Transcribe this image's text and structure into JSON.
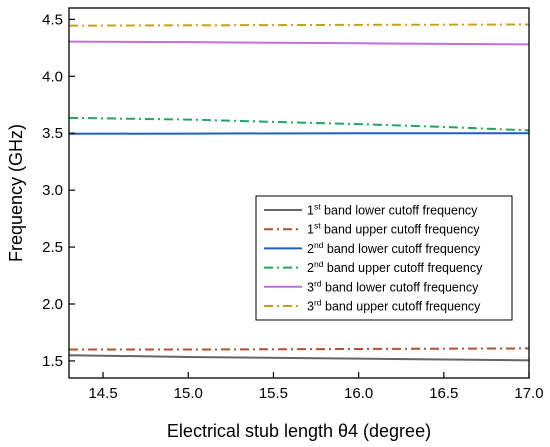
{
  "chart_data": {
    "type": "line",
    "xlabel": "Electrical stub length θ4 (degree)",
    "ylabel": "Frequency (GHz)",
    "xlim": [
      14.3,
      17.0
    ],
    "ylim": [
      1.35,
      4.6
    ],
    "xticks": [
      14.5,
      15.0,
      15.5,
      16.0,
      16.5,
      17.0
    ],
    "xtick_labels": [
      "14.5",
      "15.0",
      "15.5",
      "16.0",
      "16.5",
      "17.0"
    ],
    "yticks": [
      1.5,
      2.0,
      2.5,
      3.0,
      3.5,
      4.0,
      4.5
    ],
    "ytick_labels": [
      "1.5",
      "2.0",
      "2.5",
      "3.0",
      "3.5",
      "4.0",
      "4.5"
    ],
    "grid": false,
    "legend_position": "center-right",
    "series": [
      {
        "name": "1st band lower cutoff frequency",
        "label_parts": [
          "1",
          "st",
          " band lower cutoff frequency"
        ],
        "color": "#666666",
        "dash": "solid",
        "x": [
          14.3,
          15.0,
          16.0,
          17.0
        ],
        "y": [
          1.55,
          1.535,
          1.52,
          1.505
        ]
      },
      {
        "name": "1st band upper cutoff frequency",
        "label_parts": [
          "1",
          "st",
          " band upper cutoff frequency"
        ],
        "color": "#b5502f",
        "dash": "dashdot",
        "x": [
          14.3,
          15.0,
          16.0,
          17.0
        ],
        "y": [
          1.6,
          1.6,
          1.605,
          1.61
        ]
      },
      {
        "name": "2nd band lower cutoff frequency",
        "label_parts": [
          "2",
          "nd",
          " band lower cutoff frequency"
        ],
        "color": "#1f5fbf",
        "dash": "solid",
        "x": [
          14.3,
          15.0,
          16.0,
          17.0
        ],
        "y": [
          3.495,
          3.497,
          3.5,
          3.5
        ]
      },
      {
        "name": "2nd band upper cutoff frequency",
        "label_parts": [
          "2",
          "nd",
          " band upper cutoff frequency"
        ],
        "color": "#23a36a",
        "dash": "dashdot",
        "x": [
          14.3,
          15.0,
          15.5,
          16.0,
          16.5,
          17.0
        ],
        "y": [
          3.635,
          3.62,
          3.6,
          3.58,
          3.555,
          3.525
        ]
      },
      {
        "name": "3rd band lower cutoff frequency",
        "label_parts": [
          "3",
          "rd",
          " band lower cutoff frequency"
        ],
        "color": "#c06ee0",
        "dash": "solid",
        "x": [
          14.3,
          15.0,
          16.0,
          17.0
        ],
        "y": [
          4.305,
          4.3,
          4.29,
          4.28
        ]
      },
      {
        "name": "3rd band upper cutoff frequency",
        "label_parts": [
          "3",
          "rd",
          " band upper cutoff frequency"
        ],
        "color": "#c9a020",
        "dash": "dashdot",
        "x": [
          14.3,
          15.0,
          16.0,
          17.0
        ],
        "y": [
          4.445,
          4.448,
          4.452,
          4.455
        ]
      }
    ]
  }
}
